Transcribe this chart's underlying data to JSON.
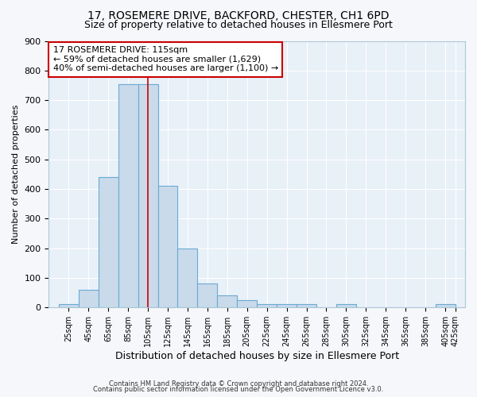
{
  "title": "17, ROSEMERE DRIVE, BACKFORD, CHESTER, CH1 6PD",
  "subtitle": "Size of property relative to detached houses in Ellesmere Port",
  "xlabel": "Distribution of detached houses by size in Ellesmere Port",
  "ylabel": "Number of detached properties",
  "bin_labels": [
    "25sqm",
    "45sqm",
    "65sqm",
    "85sqm",
    "105sqm",
    "125sqm",
    "145sqm",
    "165sqm",
    "185sqm",
    "205sqm",
    "225sqm",
    "245sqm",
    "265sqm",
    "285sqm",
    "305sqm",
    "325sqm",
    "345sqm",
    "365sqm",
    "385sqm",
    "405sqm",
    "425sqm"
  ],
  "bin_left_edges": [
    25,
    45,
    65,
    85,
    105,
    125,
    145,
    165,
    185,
    205,
    225,
    245,
    265,
    285,
    305,
    325,
    345,
    365,
    385,
    405
  ],
  "bar_heights": [
    10,
    60,
    440,
    755,
    755,
    410,
    200,
    80,
    40,
    25,
    10,
    10,
    10,
    0,
    10,
    0,
    0,
    0,
    0,
    10
  ],
  "bar_color": "#c9daea",
  "bar_edge_color": "#6aaad4",
  "property_line_x": 115,
  "property_line_color": "#cc0000",
  "annotation_text": "17 ROSEMERE DRIVE: 115sqm\n← 59% of detached houses are smaller (1,629)\n40% of semi-detached houses are larger (1,100) →",
  "annotation_box_edgecolor": "#cc0000",
  "ylim": [
    0,
    900
  ],
  "yticks": [
    0,
    100,
    200,
    300,
    400,
    500,
    600,
    700,
    800,
    900
  ],
  "axes_facecolor": "#e8f0f8",
  "figure_facecolor": "#f5f7fa",
  "grid_color": "#ffffff",
  "title_fontsize": 10,
  "subtitle_fontsize": 9,
  "footer_line1": "Contains HM Land Registry data © Crown copyright and database right 2024.",
  "footer_line2": "Contains public sector information licensed under the Open Government Licence v3.0."
}
